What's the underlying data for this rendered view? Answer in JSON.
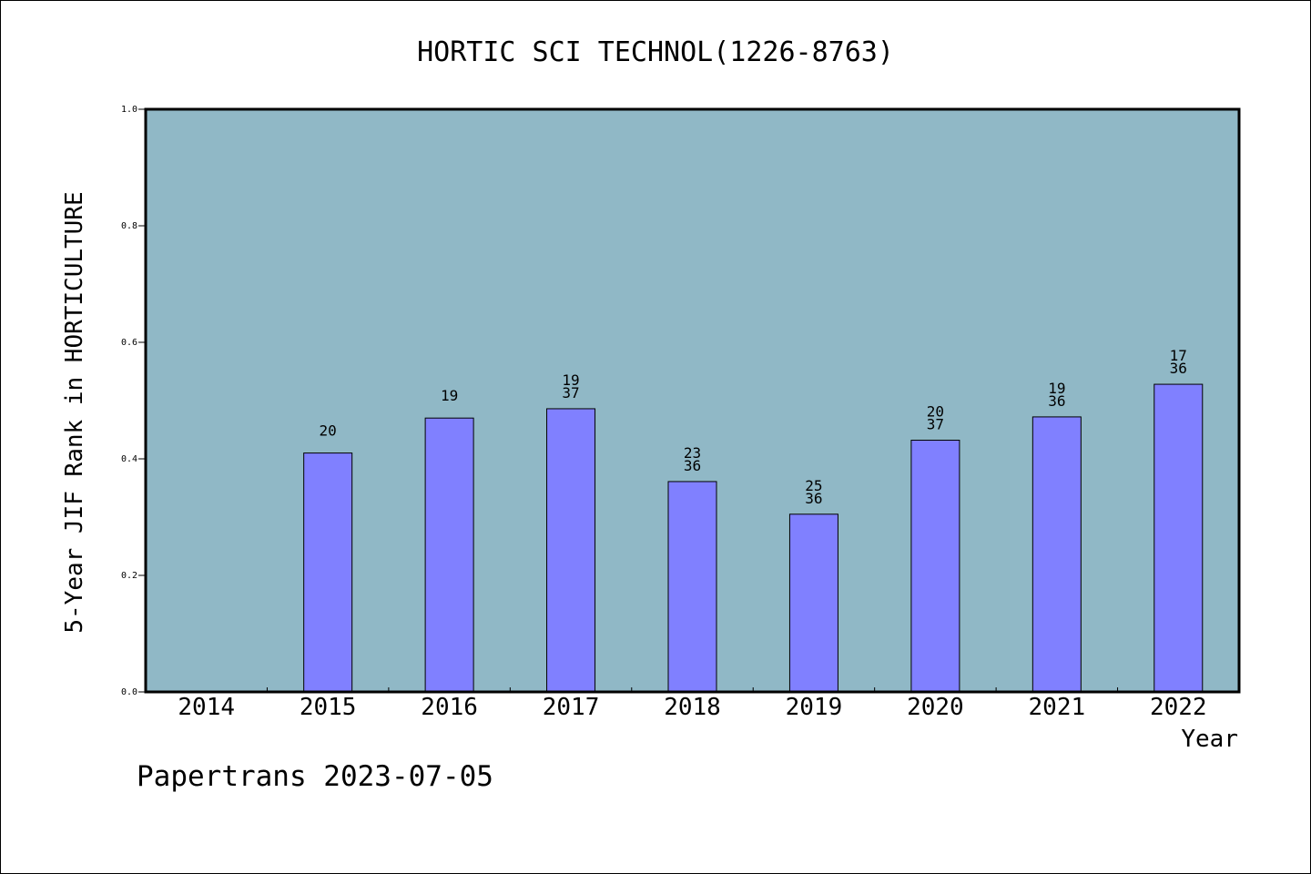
{
  "chart_data": {
    "type": "bar",
    "title": "HORTIC SCI TECHNOL(1226-8763)",
    "xlabel": "Year",
    "ylabel": "5-Year JIF Rank in HORTICULTURE",
    "categories": [
      "2014",
      "2015",
      "2016",
      "2017",
      "2018",
      "2019",
      "2020",
      "2021",
      "2022"
    ],
    "values": [
      null,
      0.41,
      0.47,
      0.486,
      0.361,
      0.305,
      0.432,
      0.472,
      0.528
    ],
    "bar_labels": [
      [],
      [
        "20"
      ],
      [
        "19"
      ],
      [
        "19",
        "37"
      ],
      [
        "23",
        "36"
      ],
      [
        "25",
        "36"
      ],
      [
        "20",
        "37"
      ],
      [
        "19",
        "36"
      ],
      [
        "17",
        "36"
      ]
    ],
    "ylim": [
      0,
      1.0
    ],
    "yticks": [
      "0.0",
      "0.2",
      "0.4",
      "0.6",
      "0.8",
      "1.0"
    ],
    "grid": false,
    "colors": {
      "plot_background": "#90b8c6",
      "bar_fill": "#8080ff",
      "bar_stroke": "#000000"
    }
  },
  "footer": {
    "watermark": "Papertrans 2023-07-05"
  }
}
